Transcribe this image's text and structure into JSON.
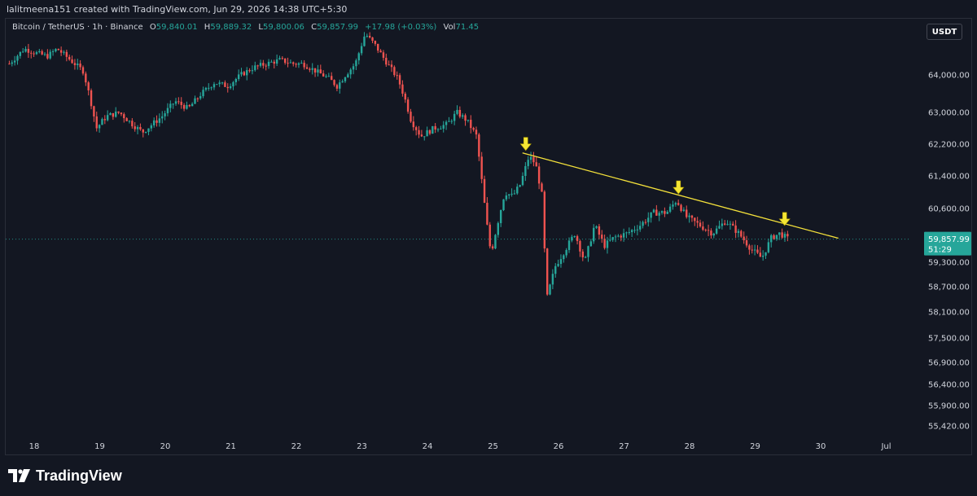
{
  "header": {
    "caption": "lalitmeena151 created with TradingView.com, Jun 29, 2026 14:38 UTC+5:30"
  },
  "legend": {
    "symbol": "Bitcoin / TetherUS · 1h · Binance",
    "open_label": "O",
    "open": "59,840.01",
    "high_label": "H",
    "high": "59,889.32",
    "low_label": "L",
    "low": "59,800.06",
    "close_label": "C",
    "close": "59,857.99",
    "change": "+17.98 (+0.03%)",
    "vol_label": "Vol",
    "vol": "71.45"
  },
  "toolbar": {
    "quote_currency": "USDT"
  },
  "footer": {
    "brand": "TradingView"
  },
  "colors": {
    "up": "#26a69a",
    "down": "#ef5350",
    "trendline": "#f5e23b",
    "arrow": "#f5e635",
    "background": "#131722",
    "price_label": "#26a69a"
  },
  "chart_data": {
    "type": "candlestick",
    "title": "Bitcoin / TetherUS · 1h · Binance",
    "x_ticks": [
      {
        "label": "18",
        "day": 18
      },
      {
        "label": "19",
        "day": 19
      },
      {
        "label": "20",
        "day": 20
      },
      {
        "label": "21",
        "day": 21
      },
      {
        "label": "22",
        "day": 22
      },
      {
        "label": "23",
        "day": 23
      },
      {
        "label": "24",
        "day": 24
      },
      {
        "label": "25",
        "day": 25
      },
      {
        "label": "26",
        "day": 26
      },
      {
        "label": "27",
        "day": 27
      },
      {
        "label": "28",
        "day": 28
      },
      {
        "label": "29",
        "day": 29
      },
      {
        "label": "30",
        "day": 30
      },
      {
        "label": "Jul",
        "day": 31
      }
    ],
    "y_ticks": [
      64000,
      63000,
      62200,
      61400,
      60600,
      59300,
      58700,
      58100,
      57500,
      56900,
      56400,
      55900,
      55420
    ],
    "y_tick_labels": [
      "64,000.00",
      "63,000.00",
      "62,200.00",
      "61,400.00",
      "60,600.00",
      "59,300.00",
      "58,700.00",
      "58,100.00",
      "57,500.00",
      "56,900.00",
      "56,400.00",
      "55,900.00",
      "55,420.00"
    ],
    "last_price": 59857.99,
    "last_price_label": "59,857.99",
    "countdown": "51:29",
    "price_path": [
      [
        17.62,
        64300
      ],
      [
        17.85,
        64700
      ],
      [
        18.0,
        64600
      ],
      [
        18.2,
        64500
      ],
      [
        18.35,
        64700
      ],
      [
        18.55,
        64400
      ],
      [
        18.75,
        64100
      ],
      [
        18.85,
        63400
      ],
      [
        18.95,
        62600
      ],
      [
        19.1,
        62900
      ],
      [
        19.3,
        63000
      ],
      [
        19.5,
        62700
      ],
      [
        19.65,
        62500
      ],
      [
        19.8,
        62700
      ],
      [
        19.95,
        62900
      ],
      [
        20.15,
        63300
      ],
      [
        20.35,
        63100
      ],
      [
        20.55,
        63500
      ],
      [
        20.75,
        63800
      ],
      [
        20.95,
        63700
      ],
      [
        21.15,
        64000
      ],
      [
        21.35,
        64200
      ],
      [
        21.55,
        64300
      ],
      [
        21.75,
        64400
      ],
      [
        21.95,
        64300
      ],
      [
        22.1,
        64300
      ],
      [
        22.3,
        64100
      ],
      [
        22.5,
        63900
      ],
      [
        22.62,
        63700
      ],
      [
        22.75,
        64000
      ],
      [
        22.9,
        64300
      ],
      [
        23.05,
        65100
      ],
      [
        23.2,
        64800
      ],
      [
        23.35,
        64400
      ],
      [
        23.55,
        63900
      ],
      [
        23.65,
        63400
      ],
      [
        23.75,
        62800
      ],
      [
        23.9,
        62400
      ],
      [
        24.1,
        62600
      ],
      [
        24.3,
        62700
      ],
      [
        24.45,
        63000
      ],
      [
        24.6,
        62800
      ],
      [
        24.75,
        62400
      ],
      [
        24.82,
        61400
      ],
      [
        24.9,
        60300
      ],
      [
        24.97,
        59500
      ],
      [
        25.05,
        60100
      ],
      [
        25.18,
        61000
      ],
      [
        25.3,
        60900
      ],
      [
        25.42,
        61200
      ],
      [
        25.55,
        61900
      ],
      [
        25.65,
        61700
      ],
      [
        25.75,
        60900
      ],
      [
        25.82,
        58400
      ],
      [
        25.95,
        59200
      ],
      [
        26.1,
        59600
      ],
      [
        26.25,
        60000
      ],
      [
        26.4,
        59300
      ],
      [
        26.55,
        60200
      ],
      [
        26.7,
        59700
      ],
      [
        26.85,
        59900
      ],
      [
        27.05,
        60000
      ],
      [
        27.25,
        60200
      ],
      [
        27.45,
        60500
      ],
      [
        27.65,
        60500
      ],
      [
        27.8,
        60800
      ],
      [
        27.95,
        60400
      ],
      [
        28.15,
        60200
      ],
      [
        28.35,
        60000
      ],
      [
        28.55,
        60300
      ],
      [
        28.75,
        60000
      ],
      [
        28.95,
        59600
      ],
      [
        29.1,
        59400
      ],
      [
        29.25,
        59900
      ],
      [
        29.38,
        60000
      ],
      [
        29.5,
        59860
      ]
    ],
    "trendline": [
      [
        25.45,
        61980
      ],
      [
        30.27,
        59880
      ]
    ],
    "markers": [
      {
        "day": 25.5,
        "price": 61980
      },
      {
        "day": 27.83,
        "price": 60900
      },
      {
        "day": 29.45,
        "price": 60130
      }
    ]
  }
}
